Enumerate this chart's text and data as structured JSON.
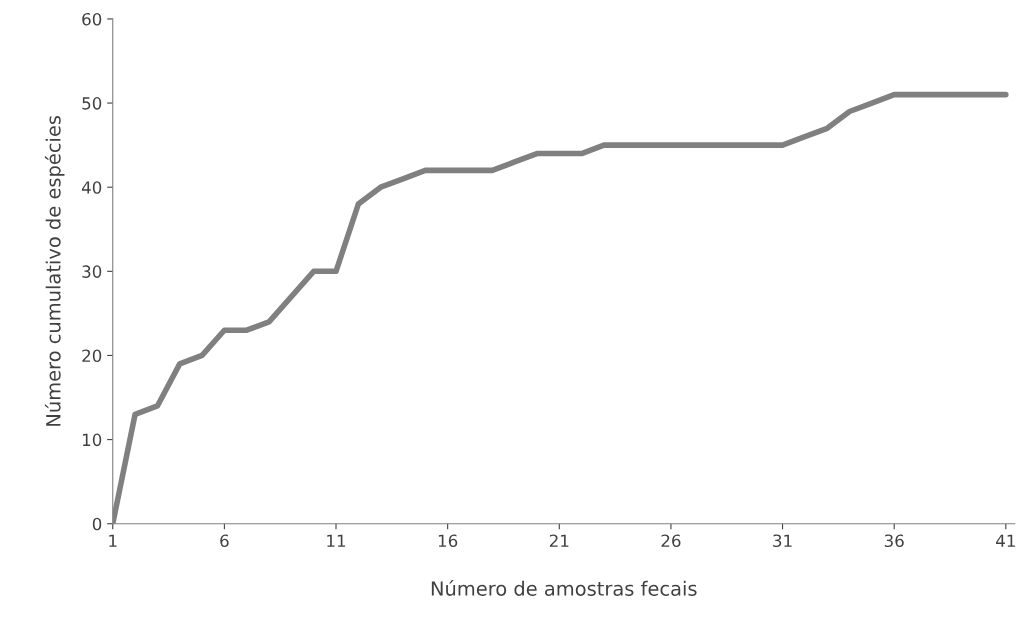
{
  "chart_data": {
    "type": "line",
    "xlabel": "Número de amostras fecais",
    "ylabel": "Número cumulativo de espécies",
    "categories": [
      "1",
      null,
      null,
      null,
      null,
      "6",
      null,
      null,
      null,
      null,
      "11",
      null,
      null,
      null,
      null,
      "16",
      null,
      null,
      null,
      null,
      "21",
      null,
      null,
      null,
      null,
      "26",
      null,
      null,
      null,
      null,
      "31",
      null,
      null,
      null,
      null,
      "36",
      null,
      null,
      null,
      null,
      "41"
    ],
    "series": [
      {
        "color": "#808080",
        "values": [
          0,
          13,
          14,
          19,
          20,
          23,
          23,
          24,
          27,
          30,
          30,
          38,
          40,
          41,
          42,
          42,
          42,
          42,
          43,
          44,
          44,
          44,
          45,
          45,
          45,
          45,
          45,
          45,
          45,
          45,
          45,
          46,
          47,
          49,
          50,
          51,
          51,
          51,
          51,
          51,
          51
        ]
      }
    ],
    "ylim": [
      0,
      60
    ],
    "yticks": [
      0,
      10,
      20,
      30,
      40,
      50,
      60
    ],
    "grid": false,
    "legend": false,
    "marker": "none",
    "line_style": "solid"
  }
}
